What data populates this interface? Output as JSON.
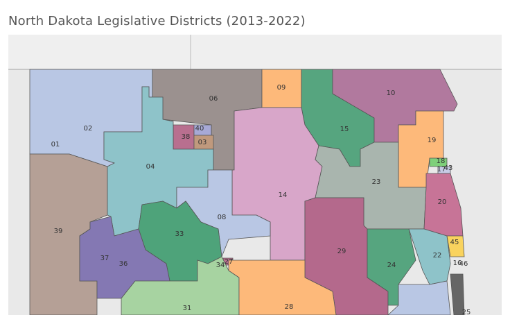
{
  "title": "North Dakota Legislative Districts (2013-2022)",
  "districts": [
    "02",
    "01",
    "39",
    "06",
    "09",
    "15",
    "10",
    "19",
    "38",
    "40",
    "03",
    "04",
    "14",
    "23",
    "18",
    "17",
    "43",
    "20",
    "08",
    "33",
    "36",
    "37",
    "29",
    "24",
    "22",
    "45",
    "16",
    "46",
    "34",
    "27",
    "31",
    "28",
    "25"
  ]
}
